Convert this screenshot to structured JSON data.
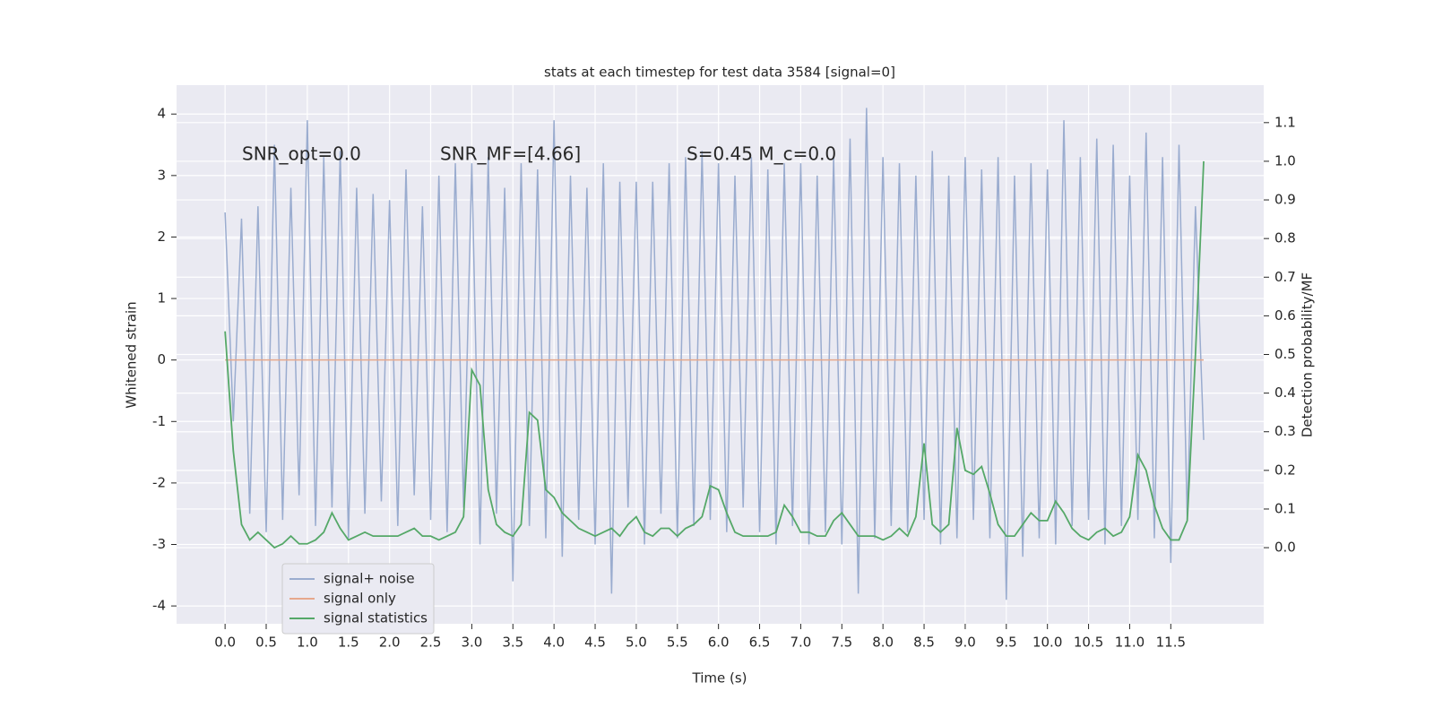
{
  "chart_data": {
    "type": "line",
    "title": "stats at each timestep for test data 3584 [signal=0]",
    "xlabel": "Time (s)",
    "ylabel": "Whitened strain",
    "y2label": "Detection probability/MF",
    "annotations": [
      "SNR_opt=0.0",
      "SNR_MF=[4.66]",
      "S=0.45   M_c=0.0"
    ],
    "legend": "lower left",
    "grid": true,
    "xlim": [
      -0.59,
      12.63
    ],
    "ylim": [
      -4.29,
      4.47
    ],
    "y2lim": [
      -0.197,
      1.197
    ],
    "xticks": [
      {
        "value": 0,
        "label": "0.0"
      },
      0.5,
      {
        "value": 1,
        "label": "1.0"
      },
      1.5,
      {
        "value": 2,
        "label": "2.0"
      },
      2.5,
      {
        "value": 3,
        "label": "3.0"
      },
      3.5,
      {
        "value": 4,
        "label": "4.0"
      },
      4.5,
      {
        "value": 5,
        "label": "5.0"
      },
      5.5,
      {
        "value": 6,
        "label": "6.0"
      },
      6.5,
      {
        "value": 7,
        "label": "7.0"
      },
      7.5,
      {
        "value": 8,
        "label": "8.0"
      },
      8.5,
      {
        "value": 9,
        "label": "9.0"
      },
      9.5,
      {
        "value": 10,
        "label": "10.0"
      },
      10.5,
      {
        "value": 11,
        "label": "11.0"
      },
      11.5
    ],
    "yticks": [
      -4,
      -3,
      -2,
      -1,
      0,
      1,
      2,
      3,
      4
    ],
    "y2ticks": [
      {
        "value": 0,
        "label": "0.0"
      },
      0.1,
      0.2,
      0.3,
      0.4,
      0.5,
      0.6,
      0.7,
      0.8,
      0.9,
      {
        "value": 1,
        "label": "1.0"
      },
      1.1
    ],
    "x": [
      0,
      0.1,
      0.2,
      0.3,
      0.4,
      0.5,
      0.6,
      0.7,
      0.8,
      0.9,
      1,
      1.1,
      1.2,
      1.3,
      1.4,
      1.5,
      1.6,
      1.7,
      1.8,
      1.9,
      2,
      2.1,
      2.2,
      2.3,
      2.4,
      2.5,
      2.6,
      2.7,
      2.8,
      2.9,
      3,
      3.1,
      3.2,
      3.3,
      3.4,
      3.5,
      3.6,
      3.7,
      3.8,
      3.9,
      4,
      4.1,
      4.2,
      4.3,
      4.4,
      4.5,
      4.6,
      4.7,
      4.8,
      4.9,
      5,
      5.1,
      5.2,
      5.3,
      5.4,
      5.5,
      5.6,
      5.7,
      5.8,
      5.9,
      6,
      6.1,
      6.2,
      6.3,
      6.4,
      6.5,
      6.6,
      6.7,
      6.8,
      6.9,
      7,
      7.1,
      7.2,
      7.3,
      7.4,
      7.5,
      7.6,
      7.7,
      7.8,
      7.9,
      8,
      8.1,
      8.2,
      8.3,
      8.4,
      8.5,
      8.6,
      8.7,
      8.8,
      8.9,
      9,
      9.1,
      9.2,
      9.3,
      9.4,
      9.5,
      9.6,
      9.7,
      9.8,
      9.9,
      10,
      10.1,
      10.2,
      10.3,
      10.4,
      10.5,
      10.6,
      10.7,
      10.8,
      10.9,
      11,
      11.1,
      11.2,
      11.3,
      11.4,
      11.5,
      11.6,
      11.7,
      11.8,
      11.9
    ],
    "series": [
      {
        "name": "signal+ noise",
        "color": "#9aaccf",
        "values": [
          2.4,
          -1.0,
          2.3,
          -2.5,
          2.5,
          -2.8,
          3.5,
          -2.6,
          2.8,
          -2.2,
          3.9,
          -2.7,
          3.3,
          -2.4,
          3.4,
          -2.9,
          2.8,
          -2.5,
          2.7,
          -2.3,
          2.6,
          -2.7,
          3.1,
          -2.2,
          2.5,
          -2.6,
          3.0,
          -2.8,
          3.2,
          -2.4,
          3.2,
          -3.0,
          3.3,
          -2.5,
          2.8,
          -3.6,
          3.2,
          -2.7,
          3.1,
          -2.9,
          3.9,
          -3.2,
          3.0,
          -2.6,
          2.8,
          -3.0,
          3.2,
          -3.8,
          2.9,
          -2.4,
          2.9,
          -3.0,
          2.9,
          -2.5,
          3.2,
          -2.9,
          3.3,
          -2.7,
          3.4,
          -2.6,
          3.2,
          -2.8,
          3.0,
          -2.4,
          3.3,
          -2.8,
          3.1,
          -3.0,
          3.2,
          -2.7,
          3.2,
          -3.0,
          3.0,
          -2.8,
          3.3,
          -3.0,
          3.6,
          -3.8,
          4.1,
          -2.9,
          3.3,
          -2.7,
          3.2,
          -2.8,
          3.0,
          -2.6,
          3.4,
          -3.0,
          3.0,
          -2.9,
          3.3,
          -2.6,
          3.1,
          -2.9,
          3.3,
          -3.9,
          3.0,
          -3.2,
          3.2,
          -2.9,
          3.1,
          -3.0,
          3.9,
          -2.7,
          3.3,
          -2.6,
          3.6,
          -3.0,
          3.5,
          -2.7,
          3.0,
          -2.6,
          3.7,
          -2.9,
          3.3,
          -3.3,
          3.5,
          -2.6,
          2.5,
          -1.3
        ]
      },
      {
        "name": "signal only",
        "color": "#e6a88c",
        "values": [
          0,
          0,
          0,
          0,
          0,
          0,
          0,
          0,
          0,
          0,
          0,
          0,
          0,
          0,
          0,
          0,
          0,
          0,
          0,
          0,
          0,
          0,
          0,
          0,
          0,
          0,
          0,
          0,
          0,
          0,
          0,
          0,
          0,
          0,
          0,
          0,
          0,
          0,
          0,
          0,
          0,
          0,
          0,
          0,
          0,
          0,
          0,
          0,
          0,
          0,
          0,
          0,
          0,
          0,
          0,
          0,
          0,
          0,
          0,
          0,
          0,
          0,
          0,
          0,
          0,
          0,
          0,
          0,
          0,
          0,
          0,
          0,
          0,
          0,
          0,
          0,
          0,
          0,
          0,
          0,
          0,
          0,
          0,
          0,
          0,
          0,
          0,
          0,
          0,
          0,
          0,
          0,
          0,
          0,
          0,
          0,
          0,
          0,
          0,
          0,
          0,
          0,
          0,
          0,
          0,
          0,
          0,
          0,
          0,
          0,
          0,
          0,
          0,
          0,
          0,
          0,
          0,
          0,
          0,
          0
        ]
      },
      {
        "name": "signal statistics",
        "color": "#55a868",
        "axis": "y2",
        "values": [
          0.56,
          0.25,
          0.06,
          0.02,
          0.04,
          0.02,
          0.0,
          0.01,
          0.03,
          0.01,
          0.01,
          0.02,
          0.04,
          0.09,
          0.05,
          0.02,
          0.03,
          0.04,
          0.03,
          0.03,
          0.03,
          0.03,
          0.04,
          0.05,
          0.03,
          0.03,
          0.02,
          0.03,
          0.04,
          0.08,
          0.46,
          0.42,
          0.15,
          0.06,
          0.04,
          0.03,
          0.06,
          0.35,
          0.33,
          0.15,
          0.13,
          0.09,
          0.07,
          0.05,
          0.04,
          0.03,
          0.04,
          0.05,
          0.03,
          0.06,
          0.08,
          0.04,
          0.03,
          0.05,
          0.05,
          0.03,
          0.05,
          0.06,
          0.08,
          0.16,
          0.15,
          0.09,
          0.04,
          0.03,
          0.03,
          0.03,
          0.03,
          0.04,
          0.11,
          0.08,
          0.04,
          0.04,
          0.03,
          0.03,
          0.07,
          0.09,
          0.06,
          0.03,
          0.03,
          0.03,
          0.02,
          0.03,
          0.05,
          0.03,
          0.08,
          0.27,
          0.06,
          0.04,
          0.06,
          0.31,
          0.2,
          0.19,
          0.21,
          0.14,
          0.06,
          0.03,
          0.03,
          0.06,
          0.09,
          0.07,
          0.07,
          0.12,
          0.09,
          0.05,
          0.03,
          0.02,
          0.04,
          0.05,
          0.03,
          0.04,
          0.08,
          0.24,
          0.2,
          0.11,
          0.05,
          0.02,
          0.02,
          0.07,
          0.5,
          1.0
        ]
      }
    ]
  }
}
